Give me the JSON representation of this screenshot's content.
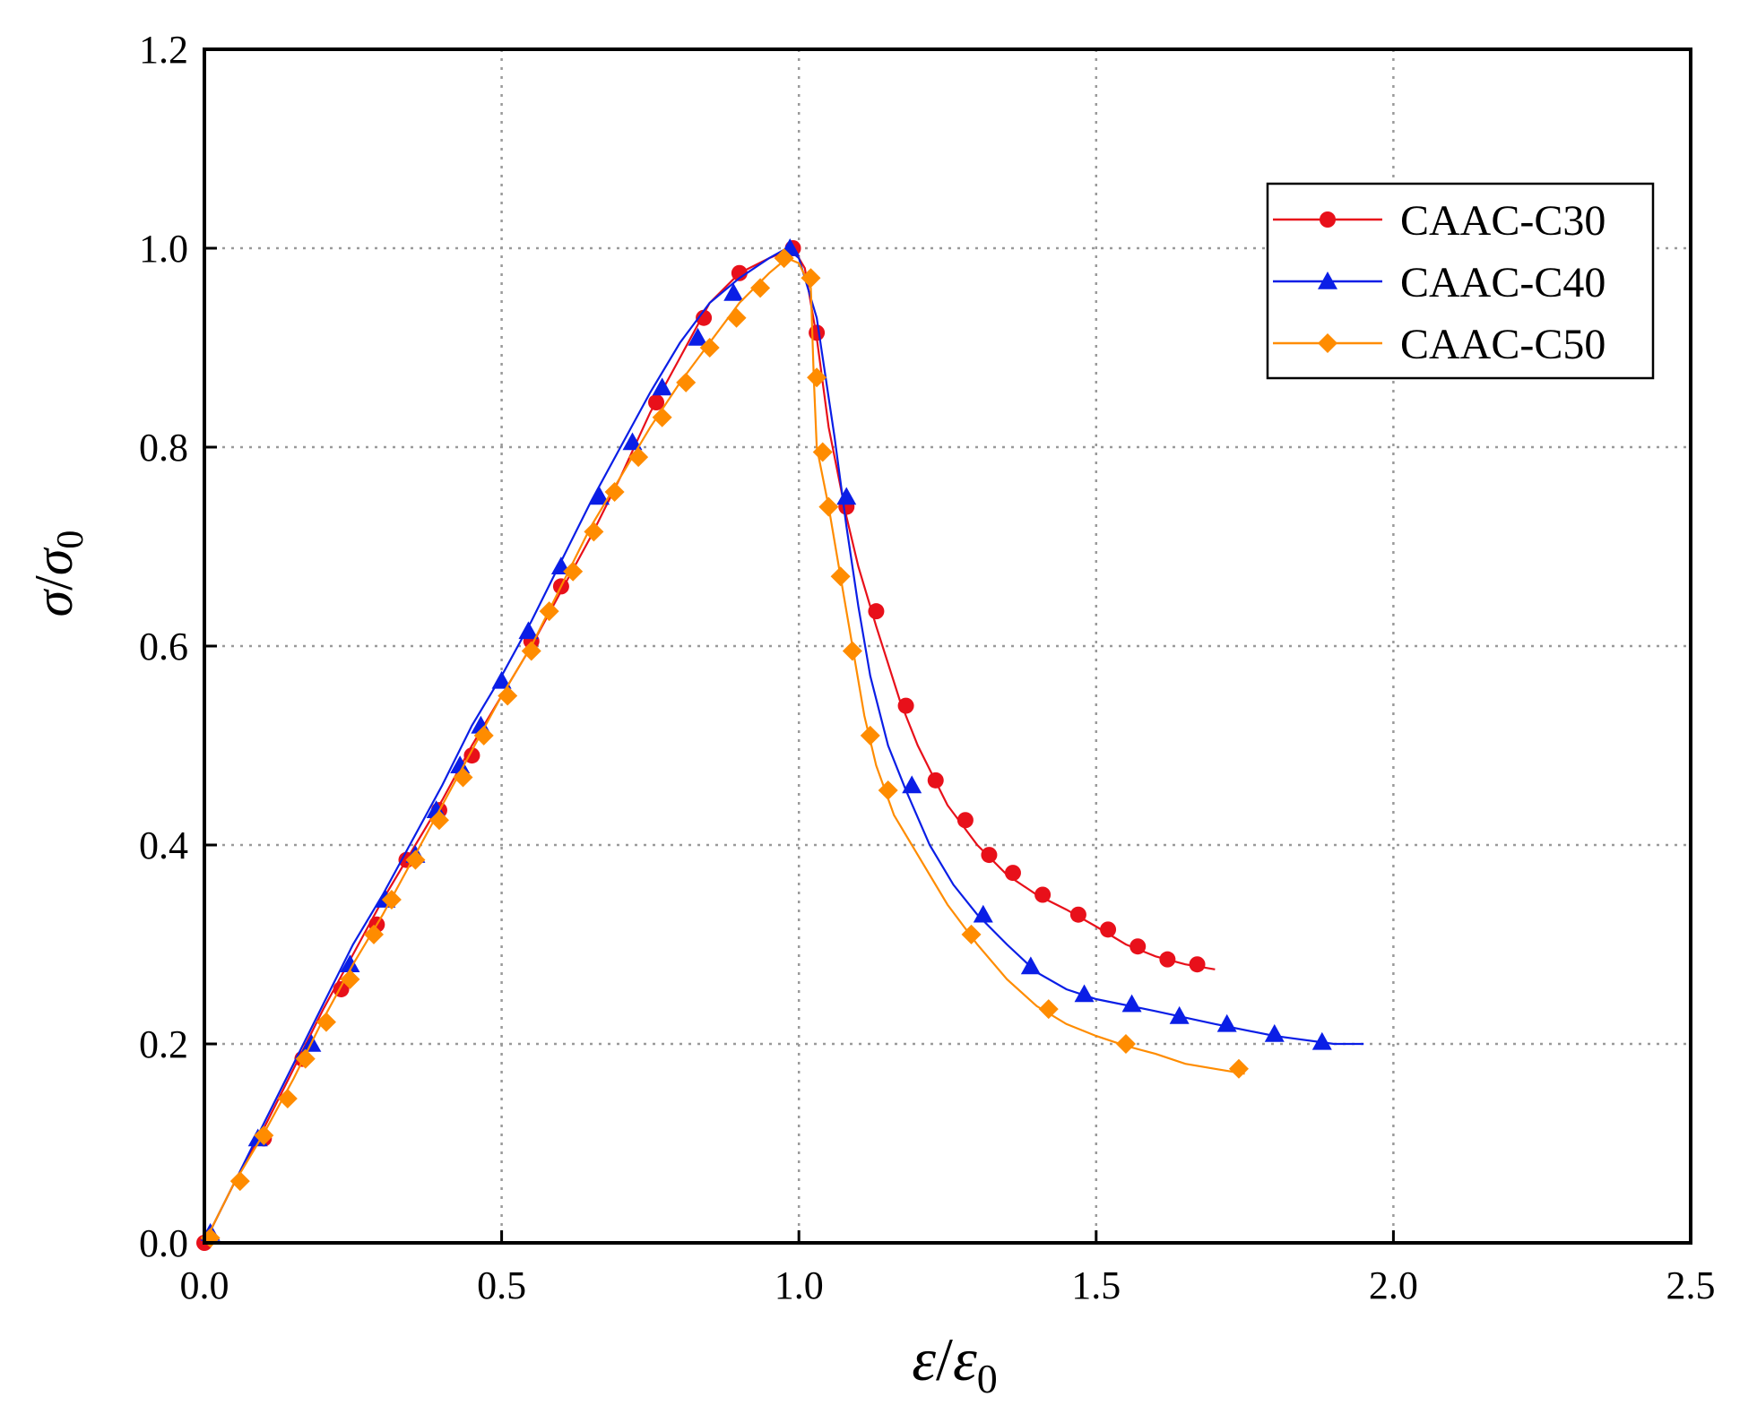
{
  "chart_data": {
    "type": "line",
    "title": "",
    "xlabel": "ε/ε0",
    "ylabel": "σ/σ0",
    "xlabel_parts": {
      "symbol": "ε",
      "slash": "/",
      "denominator": "ε",
      "subscript": "0"
    },
    "ylabel_parts": {
      "symbol": "σ",
      "slash": "/",
      "denominator": "σ",
      "subscript": "0"
    },
    "xlim": [
      0,
      2.5
    ],
    "ylim": [
      0,
      1.2
    ],
    "xticks": [
      "0.0",
      "0.5",
      "1.0",
      "1.5",
      "2.0",
      "2.5"
    ],
    "yticks": [
      "0.0",
      "0.2",
      "0.4",
      "0.6",
      "0.8",
      "1.0",
      "1.2"
    ],
    "grid": true,
    "legend_position": "top-right",
    "series": [
      {
        "name": "CAAC-C30",
        "color": "#e8101a",
        "marker": "circle",
        "line": [
          [
            0,
            0
          ],
          [
            0.05,
            0.06
          ],
          [
            0.1,
            0.115
          ],
          [
            0.15,
            0.175
          ],
          [
            0.2,
            0.235
          ],
          [
            0.25,
            0.29
          ],
          [
            0.3,
            0.345
          ],
          [
            0.35,
            0.395
          ],
          [
            0.4,
            0.445
          ],
          [
            0.45,
            0.5
          ],
          [
            0.5,
            0.55
          ],
          [
            0.55,
            0.6
          ],
          [
            0.6,
            0.655
          ],
          [
            0.65,
            0.71
          ],
          [
            0.7,
            0.77
          ],
          [
            0.75,
            0.835
          ],
          [
            0.8,
            0.89
          ],
          [
            0.85,
            0.945
          ],
          [
            0.9,
            0.975
          ],
          [
            0.95,
            0.99
          ],
          [
            0.99,
            1.0
          ],
          [
            1.01,
            0.98
          ],
          [
            1.03,
            0.91
          ],
          [
            1.05,
            0.82
          ],
          [
            1.08,
            0.73
          ],
          [
            1.1,
            0.68
          ],
          [
            1.13,
            0.62
          ],
          [
            1.17,
            0.545
          ],
          [
            1.2,
            0.5
          ],
          [
            1.25,
            0.44
          ],
          [
            1.3,
            0.4
          ],
          [
            1.35,
            0.37
          ],
          [
            1.4,
            0.35
          ],
          [
            1.45,
            0.335
          ],
          [
            1.5,
            0.318
          ],
          [
            1.55,
            0.3
          ],
          [
            1.6,
            0.288
          ],
          [
            1.65,
            0.28
          ],
          [
            1.7,
            0.275
          ]
        ],
        "points": [
          [
            0,
            0
          ],
          [
            0.1,
            0.105
          ],
          [
            0.165,
            0.185
          ],
          [
            0.23,
            0.255
          ],
          [
            0.29,
            0.32
          ],
          [
            0.34,
            0.385
          ],
          [
            0.395,
            0.435
          ],
          [
            0.45,
            0.49
          ],
          [
            0.55,
            0.605
          ],
          [
            0.6,
            0.66
          ],
          [
            0.76,
            0.845
          ],
          [
            0.84,
            0.93
          ],
          [
            0.9,
            0.975
          ],
          [
            0.99,
            1.0
          ],
          [
            1.03,
            0.915
          ],
          [
            1.08,
            0.74
          ],
          [
            1.13,
            0.635
          ],
          [
            1.18,
            0.54
          ],
          [
            1.23,
            0.465
          ],
          [
            1.28,
            0.425
          ],
          [
            1.32,
            0.39
          ],
          [
            1.36,
            0.372
          ],
          [
            1.41,
            0.35
          ],
          [
            1.47,
            0.33
          ],
          [
            1.52,
            0.315
          ],
          [
            1.57,
            0.298
          ],
          [
            1.62,
            0.285
          ],
          [
            1.67,
            0.28
          ]
        ]
      },
      {
        "name": "CAAC-C40",
        "color": "#0a1ee6",
        "marker": "triangle",
        "line": [
          [
            0,
            0
          ],
          [
            0.05,
            0.06
          ],
          [
            0.1,
            0.12
          ],
          [
            0.15,
            0.18
          ],
          [
            0.2,
            0.24
          ],
          [
            0.25,
            0.3
          ],
          [
            0.3,
            0.35
          ],
          [
            0.35,
            0.405
          ],
          [
            0.4,
            0.46
          ],
          [
            0.45,
            0.52
          ],
          [
            0.5,
            0.57
          ],
          [
            0.55,
            0.625
          ],
          [
            0.6,
            0.685
          ],
          [
            0.65,
            0.745
          ],
          [
            0.7,
            0.8
          ],
          [
            0.75,
            0.855
          ],
          [
            0.8,
            0.905
          ],
          [
            0.85,
            0.945
          ],
          [
            0.9,
            0.97
          ],
          [
            0.95,
            0.99
          ],
          [
            0.98,
            1.0
          ],
          [
            1.0,
            0.99
          ],
          [
            1.03,
            0.93
          ],
          [
            1.06,
            0.81
          ],
          [
            1.08,
            0.72
          ],
          [
            1.1,
            0.64
          ],
          [
            1.12,
            0.57
          ],
          [
            1.15,
            0.5
          ],
          [
            1.18,
            0.455
          ],
          [
            1.22,
            0.4
          ],
          [
            1.26,
            0.36
          ],
          [
            1.3,
            0.33
          ],
          [
            1.35,
            0.3
          ],
          [
            1.4,
            0.272
          ],
          [
            1.45,
            0.255
          ],
          [
            1.5,
            0.245
          ],
          [
            1.6,
            0.233
          ],
          [
            1.7,
            0.22
          ],
          [
            1.8,
            0.208
          ],
          [
            1.9,
            0.2
          ],
          [
            1.95,
            0.2
          ]
        ],
        "points": [
          [
            0.01,
            0.01
          ],
          [
            0.09,
            0.105
          ],
          [
            0.18,
            0.2
          ],
          [
            0.245,
            0.28
          ],
          [
            0.305,
            0.345
          ],
          [
            0.355,
            0.39
          ],
          [
            0.39,
            0.435
          ],
          [
            0.43,
            0.48
          ],
          [
            0.465,
            0.52
          ],
          [
            0.5,
            0.565
          ],
          [
            0.545,
            0.615
          ],
          [
            0.6,
            0.68
          ],
          [
            0.665,
            0.75
          ],
          [
            0.72,
            0.805
          ],
          [
            0.77,
            0.86
          ],
          [
            0.83,
            0.91
          ],
          [
            0.89,
            0.955
          ],
          [
            0.985,
            1.0
          ],
          [
            1.08,
            0.75
          ],
          [
            1.19,
            0.46
          ],
          [
            1.31,
            0.33
          ],
          [
            1.39,
            0.278
          ],
          [
            1.48,
            0.25
          ],
          [
            1.56,
            0.24
          ],
          [
            1.64,
            0.228
          ],
          [
            1.72,
            0.22
          ],
          [
            1.8,
            0.21
          ],
          [
            1.88,
            0.202
          ]
        ]
      },
      {
        "name": "CAAC-C50",
        "color": "#ff8c00",
        "marker": "diamond",
        "line": [
          [
            0,
            0
          ],
          [
            0.05,
            0.06
          ],
          [
            0.1,
            0.11
          ],
          [
            0.15,
            0.165
          ],
          [
            0.2,
            0.225
          ],
          [
            0.25,
            0.28
          ],
          [
            0.3,
            0.33
          ],
          [
            0.35,
            0.385
          ],
          [
            0.4,
            0.44
          ],
          [
            0.45,
            0.495
          ],
          [
            0.5,
            0.55
          ],
          [
            0.55,
            0.6
          ],
          [
            0.6,
            0.66
          ],
          [
            0.65,
            0.72
          ],
          [
            0.7,
            0.77
          ],
          [
            0.75,
            0.82
          ],
          [
            0.8,
            0.865
          ],
          [
            0.85,
            0.905
          ],
          [
            0.9,
            0.945
          ],
          [
            0.95,
            0.975
          ],
          [
            0.98,
            0.99
          ],
          [
            1.0,
            0.985
          ],
          [
            1.02,
            0.96
          ],
          [
            1.025,
            0.87
          ],
          [
            1.03,
            0.8
          ],
          [
            1.05,
            0.74
          ],
          [
            1.07,
            0.67
          ],
          [
            1.09,
            0.6
          ],
          [
            1.11,
            0.53
          ],
          [
            1.13,
            0.48
          ],
          [
            1.16,
            0.43
          ],
          [
            1.2,
            0.39
          ],
          [
            1.25,
            0.34
          ],
          [
            1.3,
            0.3
          ],
          [
            1.35,
            0.265
          ],
          [
            1.4,
            0.238
          ],
          [
            1.45,
            0.22
          ],
          [
            1.5,
            0.208
          ],
          [
            1.55,
            0.198
          ],
          [
            1.6,
            0.19
          ],
          [
            1.65,
            0.18
          ],
          [
            1.7,
            0.175
          ],
          [
            1.75,
            0.17
          ]
        ],
        "points": [
          [
            0.01,
            0.005
          ],
          [
            0.06,
            0.062
          ],
          [
            0.1,
            0.108
          ],
          [
            0.14,
            0.145
          ],
          [
            0.17,
            0.185
          ],
          [
            0.205,
            0.222
          ],
          [
            0.245,
            0.265
          ],
          [
            0.285,
            0.31
          ],
          [
            0.315,
            0.345
          ],
          [
            0.355,
            0.385
          ],
          [
            0.395,
            0.425
          ],
          [
            0.435,
            0.468
          ],
          [
            0.47,
            0.51
          ],
          [
            0.51,
            0.55
          ],
          [
            0.55,
            0.595
          ],
          [
            0.58,
            0.635
          ],
          [
            0.62,
            0.675
          ],
          [
            0.655,
            0.715
          ],
          [
            0.69,
            0.755
          ],
          [
            0.73,
            0.79
          ],
          [
            0.77,
            0.83
          ],
          [
            0.81,
            0.865
          ],
          [
            0.85,
            0.9
          ],
          [
            0.895,
            0.93
          ],
          [
            0.935,
            0.96
          ],
          [
            0.975,
            0.99
          ],
          [
            1.02,
            0.97
          ],
          [
            1.03,
            0.87
          ],
          [
            1.04,
            0.795
          ],
          [
            1.05,
            0.74
          ],
          [
            1.07,
            0.67
          ],
          [
            1.09,
            0.595
          ],
          [
            1.12,
            0.51
          ],
          [
            1.15,
            0.455
          ],
          [
            1.29,
            0.31
          ],
          [
            1.42,
            0.235
          ],
          [
            1.55,
            0.2
          ],
          [
            1.74,
            0.175
          ]
        ]
      }
    ]
  }
}
